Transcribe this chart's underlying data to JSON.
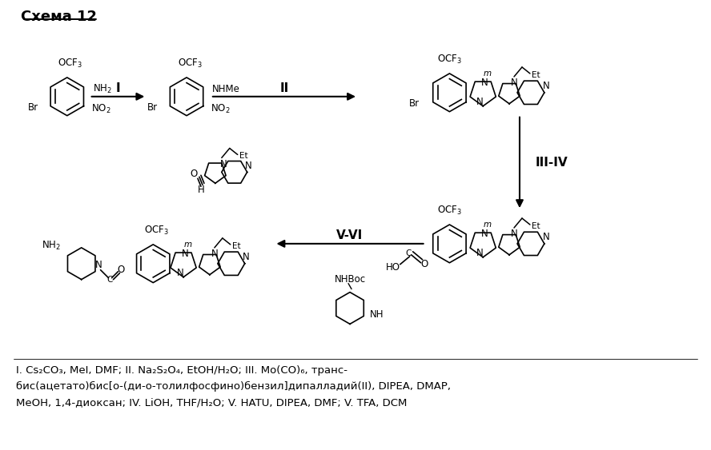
{
  "title": "Схема 12",
  "background_color": "#ffffff",
  "text_color": "#000000",
  "figsize": [
    8.88,
    5.63
  ],
  "dpi": 100,
  "footnote_line1": "I. Cs₂CO₃, MeI, DMF; II. Na₂S₂O₄, EtOH/H₂O; III. Mo(CO)₆, транс-",
  "footnote_line2": "бис(ацетато)бис[о-(ди-о-толилфосфино)бензил]дипалладий(II), DIPEA, DMAP,",
  "footnote_line3": "MeOH, 1,4-диоксан; IV. LiOH, THF/H₂O; V. HATU, DIPEA, DMF; V. TFA, DCM"
}
